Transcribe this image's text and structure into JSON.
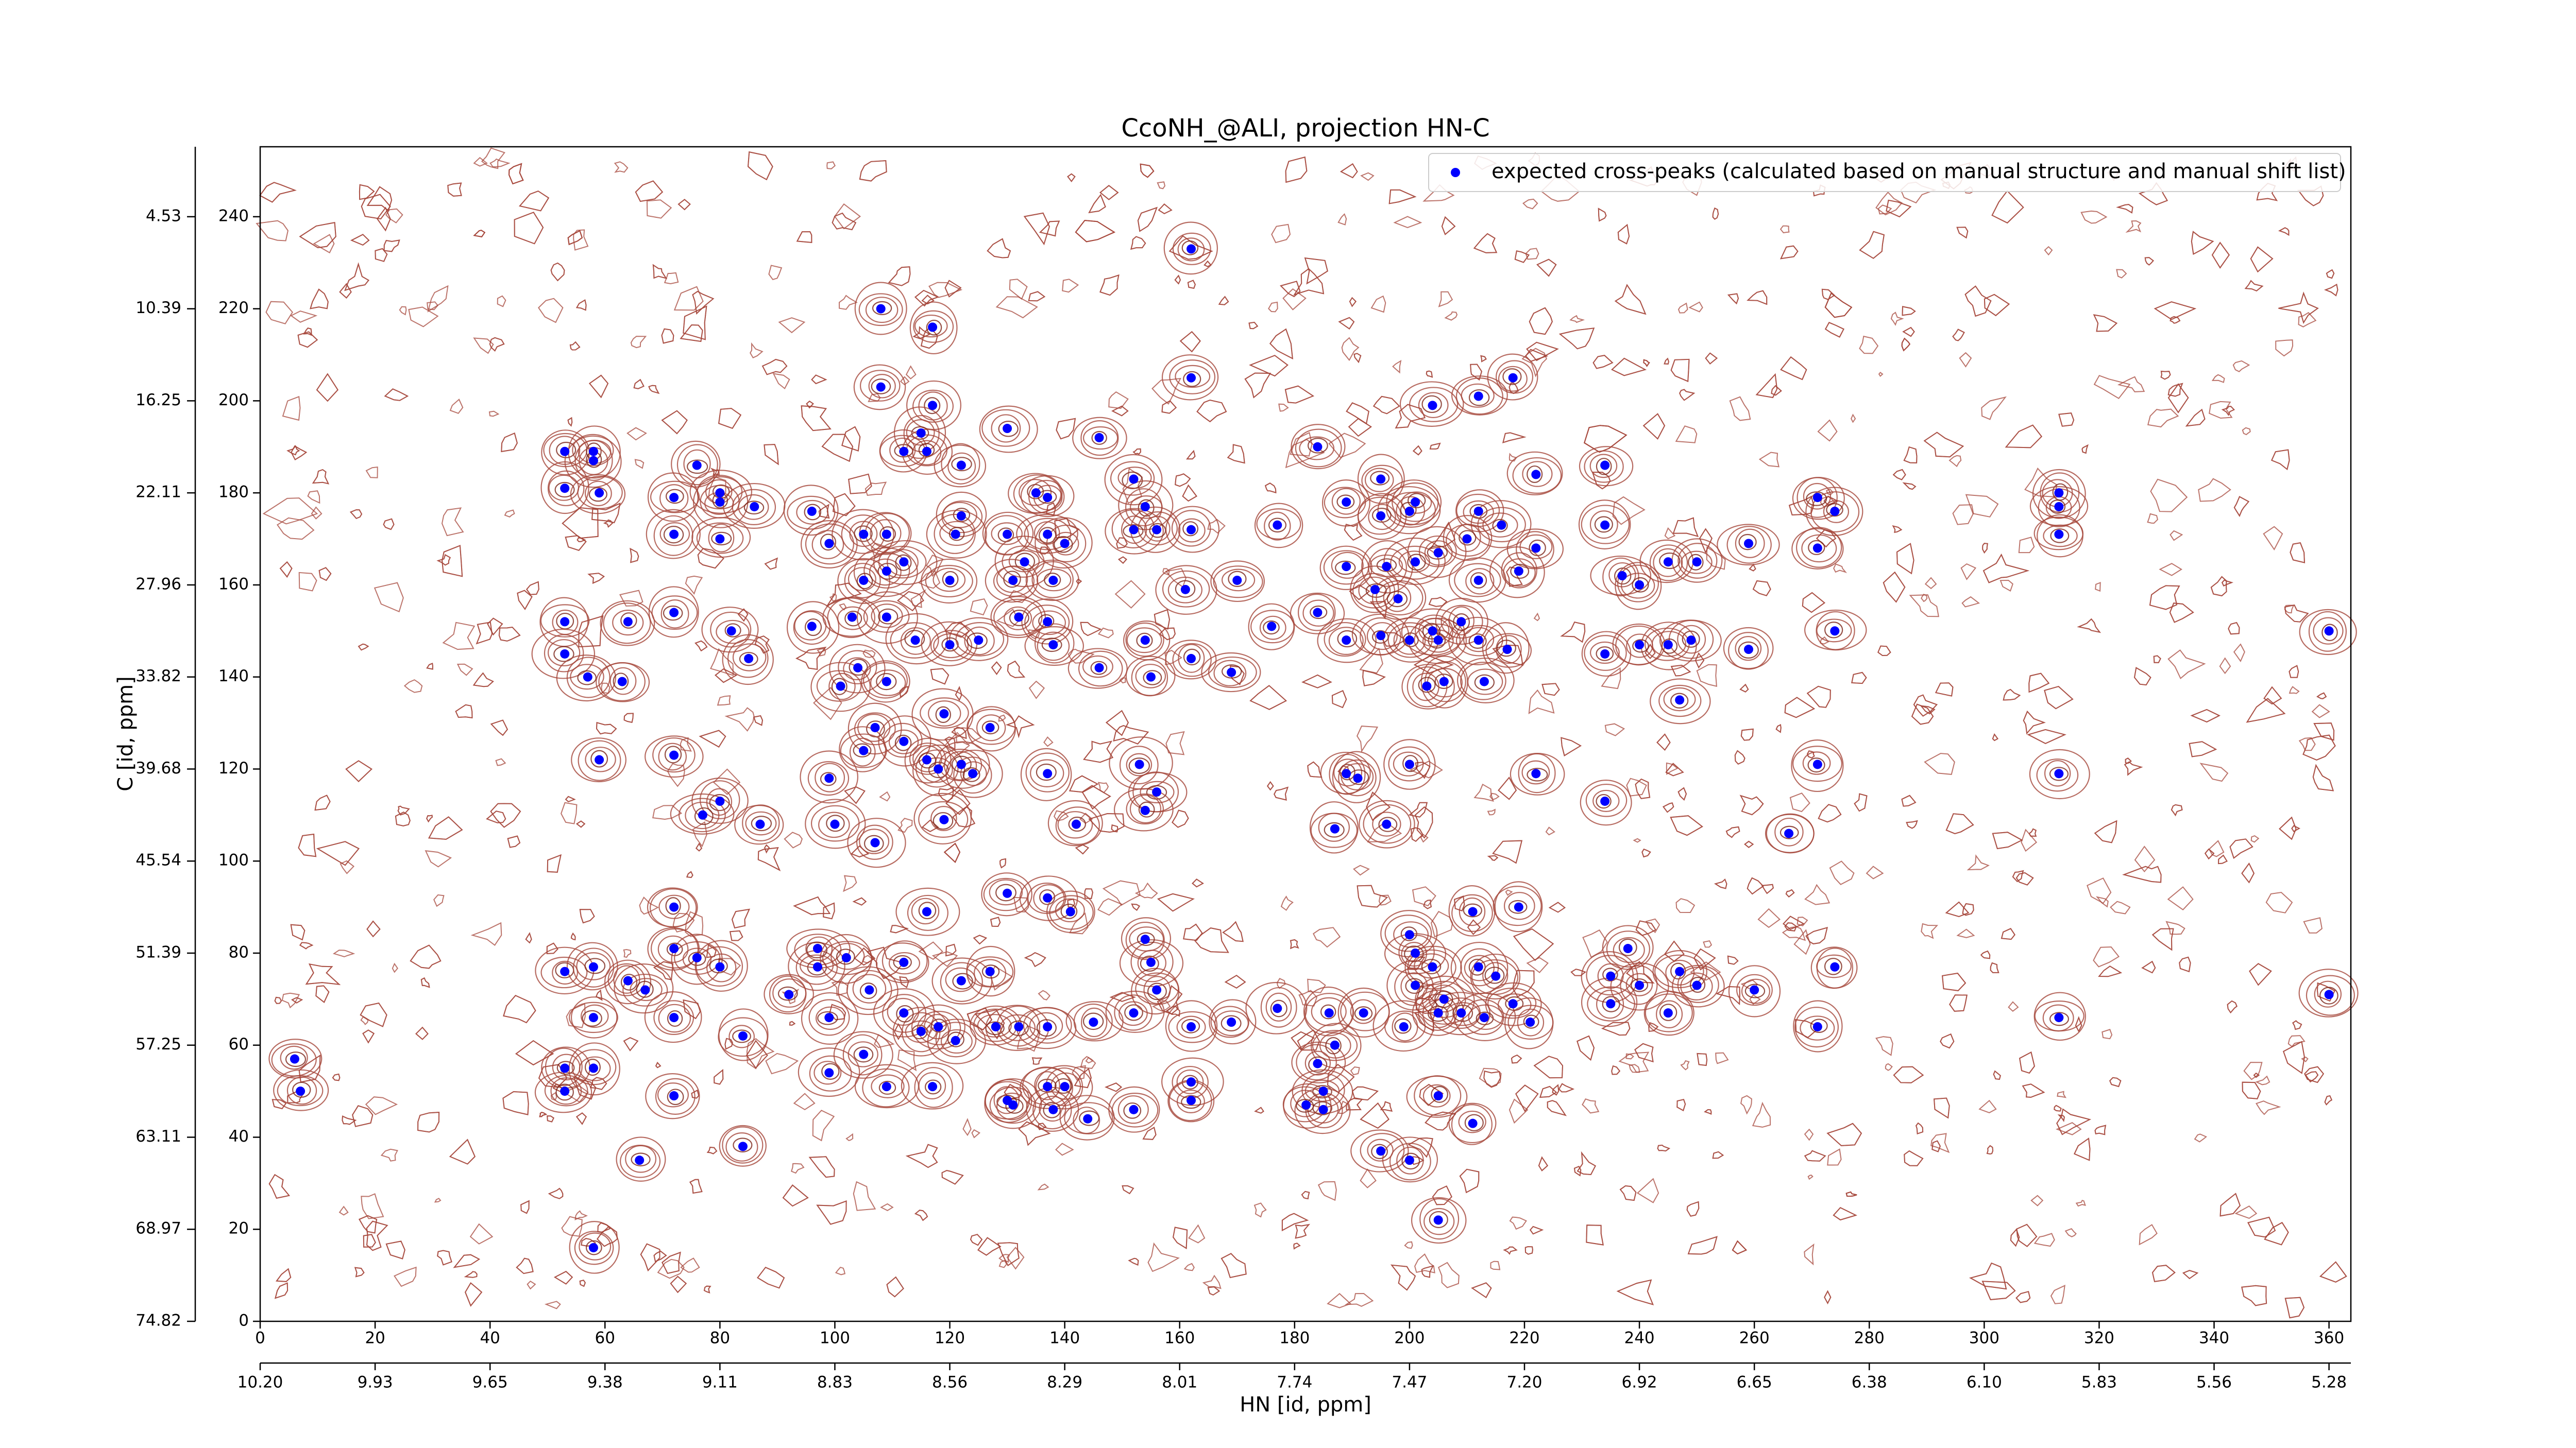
{
  "chart_data": {
    "type": "scatter",
    "title": "CcoNH_@ALI, projection HN-C",
    "xlabel": "HN [id, ppm]",
    "ylabel": "C [id, ppm]",
    "legend": "upper right",
    "xlim": [
      0,
      363.8
    ],
    "ylim": [
      0,
      255.2
    ],
    "xticks": [
      0,
      20,
      40,
      60,
      80,
      100,
      120,
      140,
      160,
      180,
      200,
      220,
      240,
      260,
      280,
      300,
      320,
      340,
      360
    ],
    "yticks": [
      0,
      20,
      40,
      60,
      80,
      100,
      120,
      140,
      160,
      180,
      200,
      220,
      240
    ],
    "x2ticks": [
      {
        "value": 0,
        "label": "10.20"
      },
      {
        "value": 20,
        "label": "9.93"
      },
      {
        "value": 40,
        "label": "9.65"
      },
      {
        "value": 60,
        "label": "9.38"
      },
      {
        "value": 80,
        "label": "9.11"
      },
      {
        "value": 100,
        "label": "8.83"
      },
      {
        "value": 120,
        "label": "8.56"
      },
      {
        "value": 140,
        "label": "8.29"
      },
      {
        "value": 160,
        "label": "8.01"
      },
      {
        "value": 180,
        "label": "7.74"
      },
      {
        "value": 200,
        "label": "7.47"
      },
      {
        "value": 220,
        "label": "7.20"
      },
      {
        "value": 240,
        "label": "6.92"
      },
      {
        "value": 260,
        "label": "6.65"
      },
      {
        "value": 280,
        "label": "6.38"
      },
      {
        "value": 300,
        "label": "6.10"
      },
      {
        "value": 320,
        "label": "5.83"
      },
      {
        "value": 340,
        "label": "5.56"
      },
      {
        "value": 360,
        "label": "5.28"
      }
    ],
    "y2ticks": [
      {
        "value": 0,
        "label": "74.82"
      },
      {
        "value": 20,
        "label": "68.97"
      },
      {
        "value": 40,
        "label": "63.11"
      },
      {
        "value": 60,
        "label": "57.25"
      },
      {
        "value": 80,
        "label": "51.39"
      },
      {
        "value": 100,
        "label": "45.54"
      },
      {
        "value": 120,
        "label": "39.68"
      },
      {
        "value": 140,
        "label": "33.82"
      },
      {
        "value": 160,
        "label": "27.96"
      },
      {
        "value": 180,
        "label": "22.11"
      },
      {
        "value": 200,
        "label": "16.25"
      },
      {
        "value": 220,
        "label": "10.39"
      },
      {
        "value": 240,
        "label": "4.53"
      }
    ],
    "x": [
      53,
      58,
      58,
      53,
      59,
      76,
      72,
      80,
      80,
      86,
      72,
      80,
      96,
      99,
      105,
      109,
      109,
      112,
      105,
      108,
      117,
      108,
      117,
      115,
      112,
      116,
      122,
      135,
      137,
      130,
      122,
      121,
      146,
      152,
      154,
      152,
      156,
      162,
      162,
      162,
      130,
      137,
      140,
      133,
      120,
      131,
      138,
      161,
      170,
      177,
      184,
      189,
      195,
      201,
      195,
      200,
      204,
      212,
      218,
      222,
      212,
      216,
      222,
      210,
      205,
      219,
      212,
      196,
      201,
      194,
      198,
      189,
      184,
      189,
      195,
      200,
      205,
      212,
      209,
      206,
      203,
      213,
      217,
      204,
      53,
      53,
      57,
      63,
      64,
      72,
      85,
      82,
      96,
      103,
      104,
      109,
      114,
      120,
      125,
      132,
      137,
      138,
      146,
      154,
      155,
      162,
      169,
      176,
      109,
      101,
      107,
      105,
      112,
      118,
      122,
      127,
      124,
      59,
      72,
      80,
      87,
      77,
      99,
      100,
      107,
      119,
      116,
      119,
      137,
      142,
      153,
      156,
      154,
      189,
      191,
      200,
      187,
      196,
      222,
      234,
      266,
      271,
      313,
      234,
      234,
      237,
      240,
      245,
      250,
      259,
      271,
      274,
      271,
      274,
      259,
      249,
      245,
      240,
      234,
      247,
      313,
      313,
      313,
      360,
      72,
      72,
      76,
      80,
      92,
      97,
      97,
      102,
      99,
      106,
      112,
      116,
      130,
      137,
      141,
      122,
      127,
      53,
      58,
      64,
      67,
      72,
      84,
      58,
      115,
      118,
      128,
      132,
      137,
      112,
      121,
      145,
      152,
      156,
      155,
      154,
      162,
      169,
      177,
      184,
      187,
      186,
      192,
      199,
      205,
      209,
      213,
      218,
      221,
      200,
      211,
      219,
      201,
      204,
      212,
      215,
      201,
      206,
      53,
      58,
      53,
      72,
      99,
      105,
      109,
      117,
      130,
      131,
      137,
      138,
      140,
      144,
      152,
      162,
      162,
      185,
      185,
      182,
      6,
      7,
      66,
      84,
      58,
      205,
      195,
      200,
      211,
      205,
      235,
      235,
      240,
      245,
      247,
      250,
      260,
      271,
      274,
      313,
      360,
      238
    ],
    "series": [
      {
        "name": "expected cross-peaks (calculated based on manual structure and manual shift list)",
        "color": "#0000ff",
        "values": [
          189,
          189,
          187,
          181,
          180,
          186,
          179,
          180,
          178,
          177,
          171,
          170,
          176,
          169,
          171,
          171,
          163,
          165,
          161,
          220,
          216,
          203,
          199,
          193,
          189,
          189,
          186,
          180,
          179,
          194,
          175,
          171,
          192,
          183,
          177,
          172,
          172,
          172,
          205,
          233,
          171,
          171,
          169,
          165,
          161,
          161,
          161,
          159,
          161,
          173,
          190,
          178,
          183,
          178,
          175,
          176,
          199,
          201,
          205,
          184,
          176,
          173,
          168,
          170,
          167,
          163,
          161,
          164,
          165,
          159,
          157,
          164,
          154,
          148,
          149,
          148,
          148,
          148,
          152,
          139,
          138,
          139,
          146,
          150,
          152,
          145,
          140,
          139,
          152,
          154,
          144,
          150,
          151,
          153,
          142,
          153,
          148,
          147,
          148,
          153,
          152,
          147,
          142,
          148,
          140,
          144,
          141,
          151,
          139,
          138,
          129,
          124,
          126,
          120,
          121,
          129,
          119,
          122,
          123,
          113,
          108,
          110,
          118,
          108,
          104,
          109,
          122,
          132,
          119,
          108,
          121,
          115,
          111,
          119,
          118,
          121,
          107,
          108,
          119,
          113,
          106,
          121,
          119,
          186,
          173,
          162,
          160,
          165,
          165,
          169,
          179,
          176,
          168,
          150,
          146,
          148,
          147,
          147,
          145,
          135,
          180,
          177,
          171,
          150,
          90,
          81,
          79,
          77,
          71,
          77,
          81,
          79,
          66,
          72,
          78,
          89,
          93,
          92,
          89,
          74,
          76,
          76,
          77,
          74,
          72,
          66,
          62,
          66,
          63,
          64,
          64,
          64,
          64,
          67,
          61,
          65,
          67,
          72,
          78,
          83,
          64,
          65,
          68,
          56,
          60,
          67,
          67,
          64,
          67,
          67,
          66,
          69,
          65,
          84,
          89,
          90,
          80,
          77,
          77,
          75,
          73,
          70,
          55,
          55,
          50,
          49,
          54,
          58,
          51,
          51,
          48,
          47,
          51,
          46,
          51,
          44,
          46,
          52,
          48,
          50,
          46,
          47,
          57,
          50,
          35,
          38,
          16,
          22,
          37,
          35,
          43,
          49,
          75,
          69,
          73,
          67,
          76,
          73,
          72,
          64,
          77,
          66,
          71,
          81
        ]
      }
    ]
  }
}
